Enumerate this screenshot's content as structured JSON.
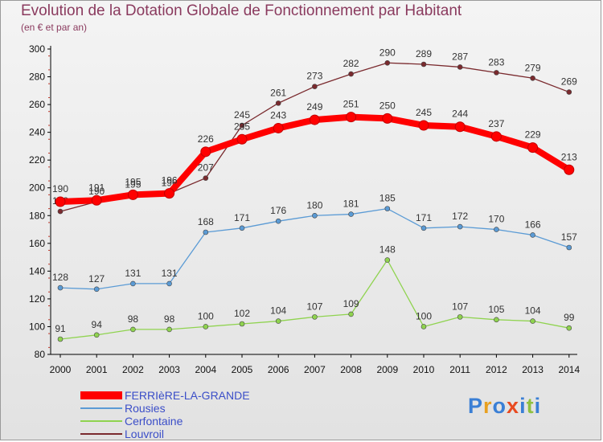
{
  "title": "Evolution de la Dotation Globale de Fonctionnement par Habitant",
  "subtitle": "(en € et par an)",
  "brand": "Proxiti",
  "chart_data": {
    "type": "line",
    "title": "Evolution de la Dotation Globale de Fonctionnement par Habitant",
    "xlabel": "",
    "ylabel": "",
    "ylim": [
      80,
      300
    ],
    "yticks": [
      80,
      100,
      120,
      140,
      160,
      180,
      200,
      220,
      240,
      260,
      280,
      300
    ],
    "grid": false,
    "legend_position": "bottom-left",
    "categories": [
      "2000",
      "2001",
      "2002",
      "2003",
      "2004",
      "2005",
      "2006",
      "2007",
      "2008",
      "2009",
      "2010",
      "2011",
      "2012",
      "2013",
      "2014"
    ],
    "series": [
      {
        "name": "Louvroil",
        "color": "#7a2a2e",
        "values": [
          183,
          190,
          195,
          196,
          207,
          245,
          261,
          273,
          282,
          290,
          289,
          287,
          283,
          279,
          269
        ],
        "labels": [
          183,
          190,
          195,
          196,
          207,
          245,
          261,
          273,
          282,
          290,
          289,
          287,
          283,
          279,
          269
        ]
      },
      {
        "name": "Cerfontaine",
        "color": "#8fd34f",
        "values": [
          91,
          94,
          98,
          98,
          100,
          102,
          104,
          107,
          109,
          148,
          100,
          107,
          105,
          104,
          99
        ],
        "labels": [
          91,
          94,
          98,
          98,
          100,
          102,
          104,
          107,
          109,
          148,
          100,
          107,
          105,
          104,
          99
        ]
      },
      {
        "name": "Rousies",
        "color": "#5b9bd5",
        "values": [
          128,
          127,
          131,
          131,
          168,
          171,
          176,
          180,
          181,
          185,
          171,
          172,
          170,
          166,
          157
        ],
        "labels": [
          128,
          127,
          131,
          131,
          168,
          171,
          176,
          180,
          181,
          185,
          171,
          172,
          170,
          166,
          157
        ]
      },
      {
        "name": "FERRIèRE-LA-GRANDE",
        "color": "#ff0000",
        "values": [
          190,
          191,
          195,
          196,
          226,
          235,
          243,
          249,
          251,
          250,
          245,
          244,
          237,
          229,
          213
        ],
        "labels": [
          190,
          191,
          195,
          196,
          226,
          235,
          243,
          249,
          251,
          250,
          245,
          244,
          237,
          229,
          213
        ]
      }
    ],
    "legend": [
      "FERRIèRE-LA-GRANDE",
      "Rousies",
      "Cerfontaine",
      "Louvroil"
    ]
  },
  "colors": {
    "title": "#8a3a5e",
    "legend_text": "#3b4ec8",
    "brand": [
      "#3a7fd5",
      "#e8a020",
      "#3a7fd5",
      "#e84a20",
      "#3a7fd5",
      "#8fc040",
      "#3a7fd5"
    ]
  }
}
